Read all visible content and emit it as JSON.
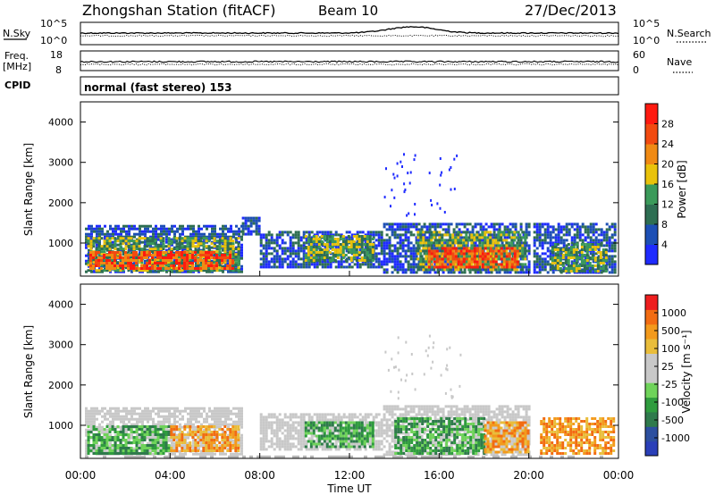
{
  "header": {
    "station": "Zhongshan Station (fitACF)",
    "beam": "Beam 10",
    "date": "27/Dec/2013"
  },
  "panels": {
    "nsky": {
      "left_label": "N.Sky",
      "ticks": [
        "10^5",
        "10^0"
      ]
    },
    "nsearch": {
      "right_label": "N.Search",
      "ticks": [
        "10^5",
        "10^0"
      ]
    },
    "freq": {
      "left_label": "Freq.",
      "unit_label": "[MHz]",
      "ticks": [
        "18",
        "8"
      ]
    },
    "nave": {
      "right_label": "Nave",
      "ticks": [
        "60",
        "0"
      ]
    },
    "cpid": {
      "label": "CPID",
      "value": "normal (fast stereo) 153"
    }
  },
  "colors": {
    "power_scale": [
      "#1f2bff",
      "#1d4fb5",
      "#2e6e52",
      "#3b9a5a",
      "#e9c20b",
      "#f08a14",
      "#f24a10",
      "#ff1a10"
    ],
    "velocity_scale": [
      "#ee1e1e",
      "#f26c12",
      "#f39a1c",
      "#e9bd3b",
      "#c8c8c8",
      "#c8c8c8",
      "#6fd35a",
      "#2f9c3e",
      "#2f7a4c",
      "#2c4f9f",
      "#2a3fb8"
    ],
    "ground_scatter": "#b8b8b8"
  },
  "chart_data": [
    {
      "type": "heatmap",
      "name": "power",
      "ylabel": "Slant Range [km]",
      "yticks": [
        "1000",
        "2000",
        "3000",
        "4000"
      ],
      "ylim": [
        180,
        4500
      ],
      "xlim": [
        "00:00",
        "24:00"
      ],
      "colorbar": {
        "label": "Power [dB]",
        "ticks": [
          "4",
          "8",
          "12",
          "16",
          "20",
          "24",
          "28"
        ],
        "range": [
          0,
          32
        ]
      },
      "regions": [
        {
          "t0": 0.2,
          "t1": 7.2,
          "r0": 300,
          "r1": 1450,
          "level": "low"
        },
        {
          "t0": 0.3,
          "t1": 7.0,
          "r0": 350,
          "r1": 1150,
          "level": "mid"
        },
        {
          "t0": 0.4,
          "t1": 6.8,
          "r0": 380,
          "r1": 800,
          "level": "high"
        },
        {
          "t0": 7.2,
          "t1": 8.0,
          "r0": 1200,
          "r1": 1650,
          "level": "low"
        },
        {
          "t0": 8.0,
          "t1": 13.5,
          "r0": 400,
          "r1": 1300,
          "level": "low"
        },
        {
          "t0": 10.0,
          "t1": 13.0,
          "r0": 600,
          "r1": 1200,
          "level": "mid"
        },
        {
          "t0": 13.5,
          "t1": 20.0,
          "r0": 300,
          "r1": 1500,
          "level": "low"
        },
        {
          "t0": 15.0,
          "t1": 19.8,
          "r0": 350,
          "r1": 1300,
          "level": "mid"
        },
        {
          "t0": 15.5,
          "t1": 19.5,
          "r0": 400,
          "r1": 900,
          "level": "high"
        },
        {
          "t0": 20.2,
          "t1": 23.8,
          "r0": 300,
          "r1": 1500,
          "level": "low"
        },
        {
          "t0": 21.0,
          "t1": 23.5,
          "r0": 300,
          "r1": 1000,
          "level": "mid"
        }
      ]
    },
    {
      "type": "heatmap",
      "name": "velocity",
      "xlabel": "Time UT",
      "ylabel": "Slant Range [km]",
      "yticks": [
        "1000",
        "2000",
        "3000",
        "4000"
      ],
      "ylim": [
        180,
        4500
      ],
      "xticks": [
        "00:00",
        "04:00",
        "08:00",
        "12:00",
        "16:00",
        "20:00",
        "00:00"
      ],
      "xlim": [
        "00:00",
        "24:00"
      ],
      "colorbar": {
        "label": "Velocity [m s⁻¹]",
        "ticks": [
          "1000",
          "500",
          "100",
          "25",
          "-25",
          "-100",
          "-500",
          "-1000"
        ]
      },
      "regions": [
        {
          "t0": 0.2,
          "t1": 7.2,
          "r0": 300,
          "r1": 1450,
          "level": "gray"
        },
        {
          "t0": 0.3,
          "t1": 4.0,
          "r0": 300,
          "r1": 1000,
          "level": "green"
        },
        {
          "t0": 4.0,
          "t1": 7.0,
          "r0": 350,
          "r1": 1000,
          "level": "orange"
        },
        {
          "t0": 8.0,
          "t1": 13.5,
          "r0": 400,
          "r1": 1300,
          "level": "gray"
        },
        {
          "t0": 10.0,
          "t1": 13.0,
          "r0": 500,
          "r1": 1100,
          "level": "green"
        },
        {
          "t0": 13.5,
          "t1": 20.0,
          "r0": 300,
          "r1": 1500,
          "level": "gray"
        },
        {
          "t0": 14.0,
          "t1": 18.0,
          "r0": 300,
          "r1": 1200,
          "level": "green"
        },
        {
          "t0": 18.0,
          "t1": 20.0,
          "r0": 350,
          "r1": 1100,
          "level": "orange"
        },
        {
          "t0": 20.5,
          "t1": 23.8,
          "r0": 300,
          "r1": 1200,
          "level": "orange"
        }
      ]
    }
  ]
}
